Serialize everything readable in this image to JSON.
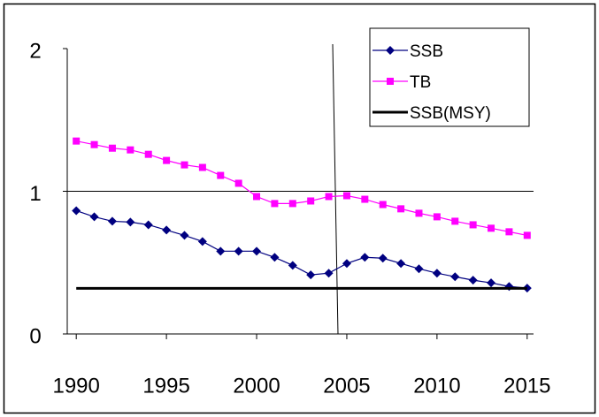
{
  "chart_data": {
    "type": "line",
    "x": [
      1990,
      1991,
      1992,
      1993,
      1994,
      1995,
      1996,
      1997,
      1998,
      1999,
      2000,
      2001,
      2002,
      2003,
      2004,
      2005,
      2006,
      2007,
      2008,
      2009,
      2010,
      2011,
      2012,
      2013,
      2014,
      2015
    ],
    "series": [
      {
        "name": "SSB",
        "color": "#000080",
        "marker": "diamond",
        "values": [
          0.864,
          0.821,
          0.79,
          0.784,
          0.765,
          0.728,
          0.691,
          0.648,
          0.58,
          0.58,
          0.58,
          0.537,
          0.481,
          0.414,
          0.426,
          0.494,
          0.537,
          0.531,
          0.494,
          0.457,
          0.426,
          0.401,
          0.377,
          0.358,
          0.333,
          0.321
        ]
      },
      {
        "name": "TB",
        "color": "#ff00ff",
        "marker": "square",
        "values": [
          1.352,
          1.327,
          1.302,
          1.29,
          1.259,
          1.216,
          1.185,
          1.167,
          1.111,
          1.056,
          0.963,
          0.914,
          0.914,
          0.932,
          0.963,
          0.969,
          0.944,
          0.907,
          0.877,
          0.846,
          0.821,
          0.79,
          0.765,
          0.741,
          0.716,
          0.691
        ]
      },
      {
        "name": "SSB(MSY)",
        "color": "#000000",
        "marker": "none",
        "values": [
          0.32,
          0.32,
          0.32,
          0.32,
          0.32,
          0.32,
          0.32,
          0.32,
          0.32,
          0.32,
          0.32,
          0.32,
          0.32,
          0.32,
          0.32,
          0.32,
          0.32,
          0.32,
          0.32,
          0.32,
          0.32,
          0.32,
          0.32,
          0.32,
          0.32,
          0.32
        ]
      }
    ],
    "xlim": [
      1989.5,
      2015.5
    ],
    "xticks": [
      1990,
      1995,
      2000,
      2005,
      2010,
      2015
    ],
    "ylim": [
      0,
      2
    ],
    "yticks": [
      0,
      1,
      2
    ],
    "grid": true,
    "legend": "upper right"
  }
}
